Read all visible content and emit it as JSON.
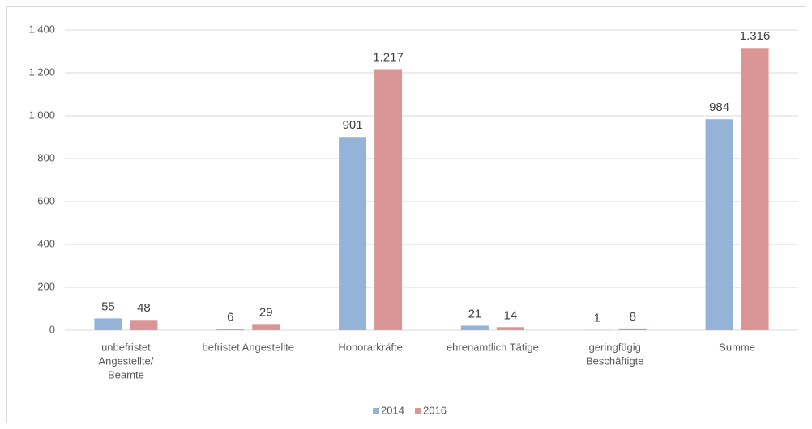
{
  "chart_data": {
    "type": "bar",
    "categories": [
      [
        "unbefristet",
        "Angestellte/",
        "Beamte"
      ],
      [
        "befristet Angestellte"
      ],
      [
        "Honorarkräfte"
      ],
      [
        "ehrenamtlich Tätige"
      ],
      [
        "geringfügig",
        "Beschäftigte"
      ],
      [
        "Summe"
      ]
    ],
    "series": [
      {
        "name": "2014",
        "color": "#95b3d7",
        "values": [
          55,
          6,
          901,
          21,
          1,
          984
        ]
      },
      {
        "name": "2016",
        "color": "#d99694",
        "values": [
          48,
          29,
          1217,
          14,
          8,
          1316
        ],
        "value_labels": [
          "48",
          "29",
          "1.217",
          "14",
          "8",
          "1.316"
        ]
      }
    ],
    "ylim": [
      0,
      1400
    ],
    "yticks": [
      0,
      200,
      400,
      600,
      800,
      {
        "value": 1000,
        "label": "1.000"
      },
      {
        "value": 1200,
        "label": "1.200"
      },
      {
        "value": 1400,
        "label": "1.400"
      }
    ],
    "grid": true,
    "legend": "bottom"
  }
}
